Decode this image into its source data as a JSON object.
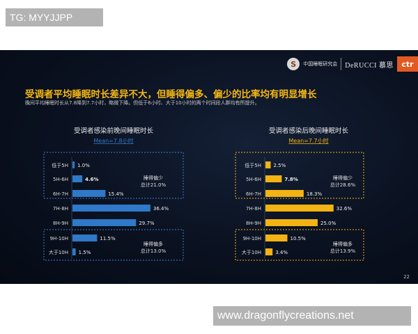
{
  "watermarks": {
    "top": "TG: MYYJJPP",
    "bottom": "www.dragonflycreations.net"
  },
  "header": {
    "org_name": "中国睡眠研究会",
    "brand1": "DeRUCCI 慕思",
    "brand2": "ctr",
    "logo_glyph": "S"
  },
  "slide": {
    "title": "受调者平均睡眠时长差异不大，但睡得偏多、偏少的比率均有明显增长",
    "subtitle": "晚间平均睡眠时长从7.8降到7.7小时，略微下降。但低于6小时、大于10小时的两个时间段人群均有所提升。",
    "page": "22"
  },
  "colors": {
    "before": "#2f79c8",
    "after": "#f2b313",
    "title": "#f5b814",
    "mean_before": "#2f79c8",
    "mean_after": "#f2b313"
  },
  "chart_data": [
    {
      "type": "bar",
      "orientation": "horizontal",
      "title": "受调者感染前晚间睡眠时长",
      "mean_label": "Mean=7.8小时",
      "categories": [
        "低于5H",
        "5H-6H",
        "6H-7H",
        "7H-8H",
        "8H-9H",
        "9H-10H",
        "大于10H"
      ],
      "values": [
        1.0,
        4.6,
        15.4,
        36.4,
        29.7,
        11.5,
        1.5
      ],
      "value_labels": [
        "1.0%",
        "4.6%",
        "15.4%",
        "36.4%",
        "29.7%",
        "11.5%",
        "1.5%"
      ],
      "bold_index": 1,
      "xlim": [
        0,
        40
      ],
      "groups": [
        {
          "label1": "睡得偏少",
          "label2": "总计21.0%"
        },
        {
          "label1": "睡得偏多",
          "label2": "总计13.0%"
        }
      ]
    },
    {
      "type": "bar",
      "orientation": "horizontal",
      "title": "受调者感染后晚间睡眠时长",
      "mean_label": "Mean=7.7小时",
      "categories": [
        "低于5H",
        "5H-6H",
        "6H-7H",
        "7H-8H",
        "8H-9H",
        "9H-10H",
        "大于10H"
      ],
      "values": [
        2.5,
        7.8,
        18.3,
        32.6,
        25.0,
        10.5,
        3.4
      ],
      "value_labels": [
        "2.5%",
        "7.8%",
        "18.3%",
        "32.6%",
        "25.0%",
        "10.5%",
        "3.4%"
      ],
      "bold_index": 1,
      "xlim": [
        0,
        40
      ],
      "groups": [
        {
          "label1": "睡得偏少",
          "label2": "总计28.6%"
        },
        {
          "label1": "睡得偏多",
          "label2": "总计13.9%"
        }
      ]
    }
  ]
}
